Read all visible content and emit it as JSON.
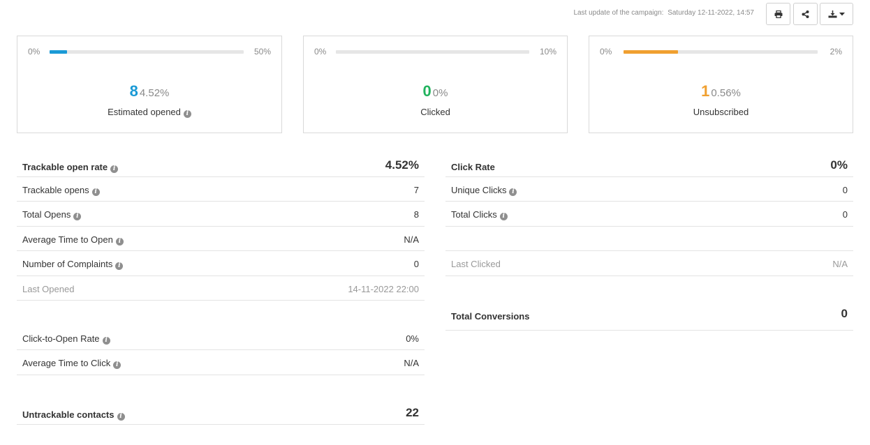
{
  "header": {
    "last_update_label": "Last update of the campaign:",
    "last_update_value": "Saturday 12-11-2022, 14:57",
    "print_icon": "print-icon",
    "share_icon": "share-icon",
    "export_icon": "download-icon"
  },
  "cards": [
    {
      "min": "0%",
      "max": "50%",
      "progress_fraction": 0.09,
      "color": "#1a9ad6",
      "count": "8",
      "percent": "4.52%",
      "label": "Estimated opened",
      "has_info": true
    },
    {
      "min": "0%",
      "max": "10%",
      "progress_fraction": 0.0,
      "color": "#22b35e",
      "count": "0",
      "percent": "0%",
      "label": "Clicked",
      "has_info": false
    },
    {
      "min": "0%",
      "max": "2%",
      "progress_fraction": 0.28,
      "color": "#f0a030",
      "count": "1",
      "percent": "0.56%",
      "label": "Unsubscribed",
      "has_info": false
    }
  ],
  "left_table": {
    "trackable_open_rate": {
      "label": "Trackable open rate",
      "value": "4.52%"
    },
    "trackable_opens": {
      "label": "Trackable opens",
      "value": "7"
    },
    "total_opens": {
      "label": "Total Opens",
      "value": "8"
    },
    "avg_time_to_open": {
      "label": "Average Time to Open",
      "value": "N/A"
    },
    "complaints": {
      "label": "Number of Complaints",
      "value": "0"
    },
    "last_opened": {
      "label": "Last Opened",
      "value": "14-11-2022 22:00"
    },
    "click_to_open": {
      "label": "Click-to-Open Rate",
      "value": "0%"
    },
    "avg_time_to_click": {
      "label": "Average Time to Click",
      "value": "N/A"
    },
    "untrackable": {
      "label": "Untrackable contacts",
      "value": "22"
    }
  },
  "right_table": {
    "click_rate": {
      "label": "Click Rate",
      "value": "0%"
    },
    "unique_clicks": {
      "label": "Unique Clicks",
      "value": "0"
    },
    "total_clicks": {
      "label": "Total Clicks",
      "value": "0"
    },
    "last_clicked": {
      "label": "Last Clicked",
      "value": "N/A"
    },
    "total_conversions": {
      "label": "Total Conversions",
      "value": "0"
    }
  },
  "colors": {
    "blue": "#1a9ad6",
    "green": "#22b35e",
    "orange": "#f0a030"
  }
}
